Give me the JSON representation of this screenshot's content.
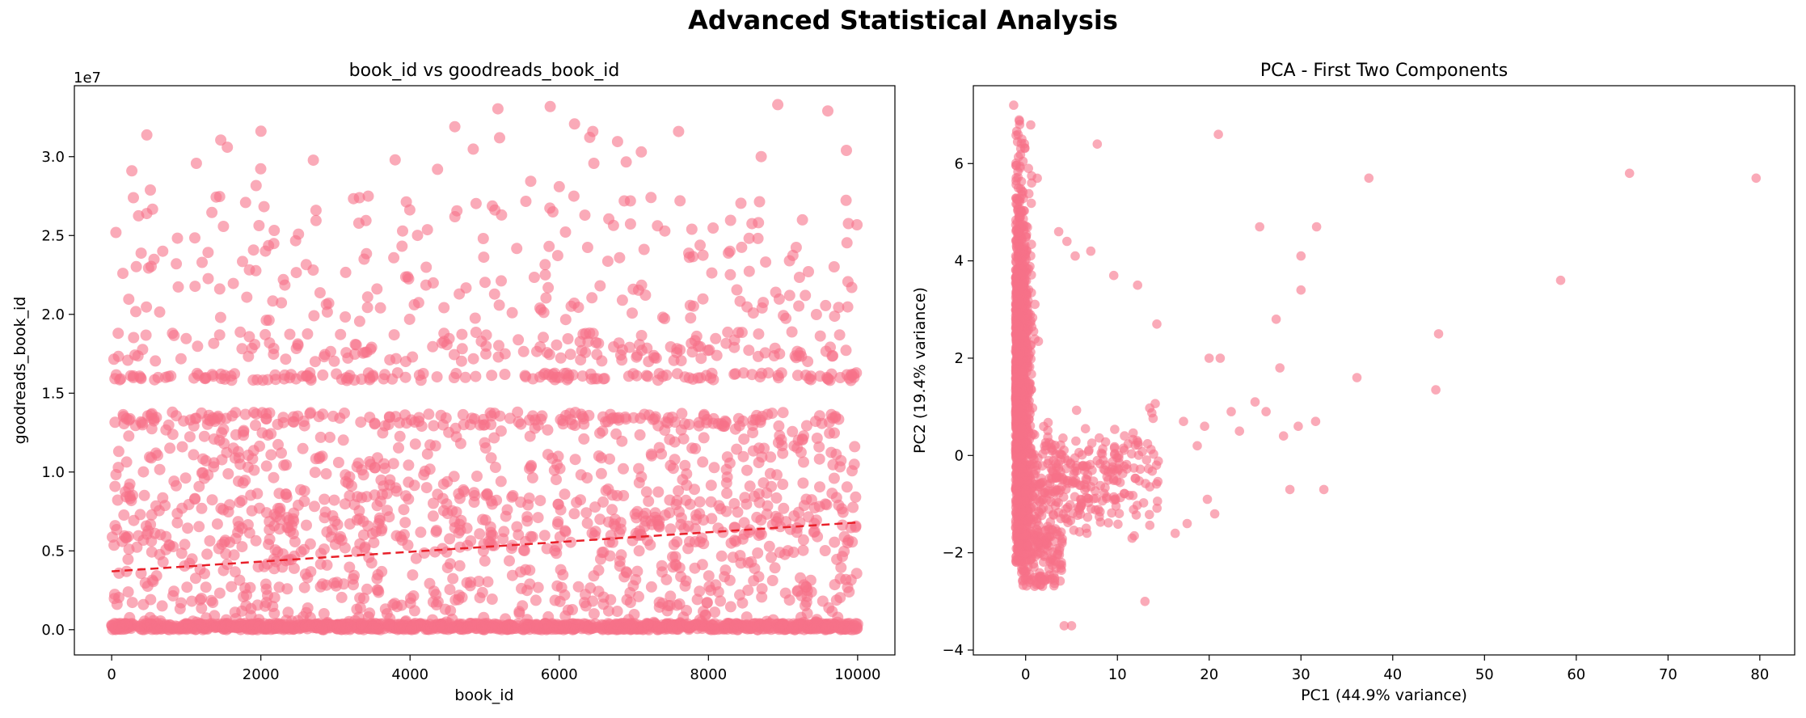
{
  "figure": {
    "suptitle": "Advanced Statistical Analysis"
  },
  "colors": {
    "points": "#f77189",
    "trend": "#e8202a",
    "axes": "#000000"
  },
  "chart_data": [
    {
      "type": "scatter",
      "title": "book_id vs goodreads_book_id",
      "xlabel": "book_id",
      "ylabel": "goodreads_book_id",
      "offset_text": "1e7",
      "xlim": [
        -500,
        10500
      ],
      "ylim": [
        -1.6,
        34.5
      ],
      "xticks": [
        0,
        2000,
        4000,
        6000,
        8000,
        10000
      ],
      "xtick_labels": [
        "0",
        "2000",
        "4000",
        "6000",
        "8000",
        "10000"
      ],
      "yticks": [
        0,
        5,
        10,
        15,
        20,
        25,
        30
      ],
      "ytick_labels": [
        "0.0",
        "0.5",
        "1.0",
        "1.5",
        "2.0",
        "2.5",
        "3.0"
      ],
      "grid": false,
      "y_units": "1e6 (axis label scale 1e7)",
      "density_bands": [
        {
          "y_range": [
            0,
            0.4
          ],
          "weight": 0.38,
          "description": "dense base near zero"
        },
        {
          "y_range": [
            0.4,
            5.5
          ],
          "weight": 0.14
        },
        {
          "y_range": [
            5.5,
            8.8
          ],
          "weight": 0.13
        },
        {
          "y_range": [
            8.8,
            12.8
          ],
          "weight": 0.09
        },
        {
          "y_range": [
            12.9,
            13.8
          ],
          "weight": 0.07
        },
        {
          "y_range": [
            15.8,
            16.3
          ],
          "weight": 0.05
        },
        {
          "y_range": [
            17.0,
            18.9
          ],
          "weight": 0.06
        },
        {
          "y_range": [
            19.5,
            24.0
          ],
          "weight": 0.04
        },
        {
          "y_range": [
            24.0,
            27.5
          ],
          "weight": 0.03
        },
        {
          "y_range": [
            27.5,
            33.3
          ],
          "weight": 0.01
        }
      ],
      "notable_points": [
        {
          "x": 270,
          "y": 29.1
        },
        {
          "x": 8930,
          "y": 33.3
        },
        {
          "x": 9600,
          "y": 32.9
        },
        {
          "x": 4600,
          "y": 31.9
        },
        {
          "x": 1550,
          "y": 30.6
        },
        {
          "x": 6450,
          "y": 31.6
        },
        {
          "x": 7600,
          "y": 31.6
        },
        {
          "x": 5200,
          "y": 31.2
        },
        {
          "x": 150,
          "y": 22.6
        },
        {
          "x": 9850,
          "y": 30.4
        },
        {
          "x": 7100,
          "y": 30.3
        },
        {
          "x": 3800,
          "y": 29.8
        }
      ],
      "trend_line": {
        "x": [
          0,
          10000
        ],
        "y": [
          3.7,
          6.8
        ],
        "style": "dashed"
      }
    },
    {
      "type": "scatter",
      "title": "PCA - First Two Components",
      "xlabel": "PC1 (44.9% variance)",
      "ylabel": "PC2 (19.4% variance)",
      "xlim": [
        -5.7,
        83.8
      ],
      "ylim": [
        -4.1,
        7.6
      ],
      "xticks": [
        0,
        10,
        20,
        30,
        40,
        50,
        60,
        70,
        80
      ],
      "xtick_labels": [
        "0",
        "10",
        "20",
        "30",
        "40",
        "50",
        "60",
        "70",
        "80"
      ],
      "yticks": [
        -4,
        -2,
        0,
        2,
        4,
        6
      ],
      "ytick_labels": [
        "−4",
        "−2",
        "0",
        "2",
        "4",
        "6"
      ],
      "grid": false,
      "notable_points": [
        {
          "x": 79.6,
          "y": 5.7
        },
        {
          "x": 65.8,
          "y": 5.8
        },
        {
          "x": 58.3,
          "y": 3.6
        },
        {
          "x": 37.4,
          "y": 5.7
        },
        {
          "x": 21.0,
          "y": 6.6
        },
        {
          "x": 7.8,
          "y": 6.4
        },
        {
          "x": 45.0,
          "y": 2.5
        },
        {
          "x": 44.7,
          "y": 1.35
        },
        {
          "x": 36.1,
          "y": 1.6
        },
        {
          "x": 32.5,
          "y": -0.7
        },
        {
          "x": 28.8,
          "y": -0.7
        },
        {
          "x": 13.0,
          "y": -3.0
        },
        {
          "x": 5.0,
          "y": -3.5
        },
        {
          "x": 4.2,
          "y": -3.5
        },
        {
          "x": 30.0,
          "y": 4.1
        },
        {
          "x": 31.7,
          "y": 4.7
        },
        {
          "x": 25.5,
          "y": 4.7
        },
        {
          "x": 30.0,
          "y": 3.4
        },
        {
          "x": 27.3,
          "y": 2.8
        },
        {
          "x": 20.0,
          "y": 2.0
        },
        {
          "x": 21.2,
          "y": 2.0
        },
        {
          "x": 19.8,
          "y": -0.9
        },
        {
          "x": 20.6,
          "y": -1.2
        },
        {
          "x": -1.3,
          "y": 7.2
        },
        {
          "x": 12.2,
          "y": 3.5
        },
        {
          "x": 14.3,
          "y": 2.7
        },
        {
          "x": 17.6,
          "y": -1.4
        },
        {
          "x": 16.3,
          "y": -1.6
        },
        {
          "x": 11.6,
          "y": -1.7
        },
        {
          "x": 28.1,
          "y": 0.4
        },
        {
          "x": 31.6,
          "y": 0.7
        },
        {
          "x": 26.2,
          "y": 0.9
        },
        {
          "x": 25.0,
          "y": 1.1
        },
        {
          "x": 23.3,
          "y": 0.5
        },
        {
          "x": 22.4,
          "y": 0.9
        },
        {
          "x": 18.7,
          "y": 0.2
        },
        {
          "x": 19.5,
          "y": 0.6
        },
        {
          "x": 17.2,
          "y": 0.7
        },
        {
          "x": 29.7,
          "y": 0.6
        },
        {
          "x": 27.7,
          "y": 1.8
        },
        {
          "x": 9.6,
          "y": 3.7
        },
        {
          "x": 7.1,
          "y": 4.2
        },
        {
          "x": 5.4,
          "y": 4.1
        },
        {
          "x": 3.6,
          "y": 4.6
        },
        {
          "x": 4.5,
          "y": 4.4
        }
      ],
      "density": {
        "main_cluster": {
          "x_range": [
            -1.4,
            1.2
          ],
          "y_range": [
            -1.8,
            6.8
          ],
          "weight": 0.7
        },
        "tail": {
          "description": "points spread rightward from x≈0..15 with y≈-2..1",
          "weight": 0.3
        }
      }
    }
  ]
}
